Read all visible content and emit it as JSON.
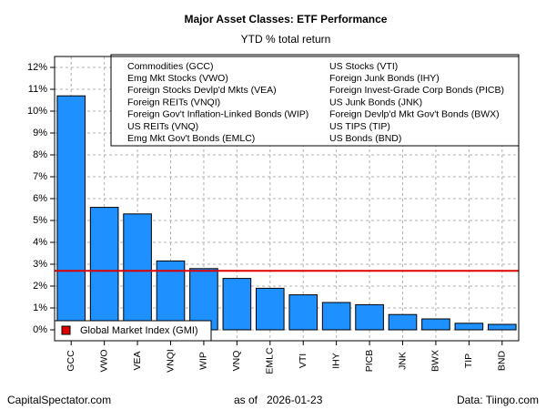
{
  "chart_data": {
    "type": "bar",
    "title": "Major Asset Classes: ETF Performance",
    "subtitle": "YTD % total return",
    "categories": [
      "GCC",
      "VWO",
      "VEA",
      "VNQI",
      "WIP",
      "VNQ",
      "EMLC",
      "VTI",
      "IHY",
      "PICB",
      "JNK",
      "BWX",
      "TIP",
      "BND"
    ],
    "values": [
      10.7,
      5.6,
      5.3,
      3.15,
      2.8,
      2.35,
      1.9,
      1.6,
      1.25,
      1.15,
      0.7,
      0.5,
      0.3,
      0.25
    ],
    "color": "#1e90ff",
    "ylim": [
      -0.5,
      12.5
    ],
    "yticks": [
      {
        "value": 0,
        "label": "0%"
      },
      {
        "value": 1,
        "label": "1%"
      },
      {
        "value": 2,
        "label": "2%"
      },
      {
        "value": 3,
        "label": "3%"
      },
      {
        "value": 4,
        "label": "4%"
      },
      {
        "value": 5,
        "label": "5%"
      },
      {
        "value": 6,
        "label": "6%"
      },
      {
        "value": 7,
        "label": "7%"
      },
      {
        "value": 8,
        "label": "8%"
      },
      {
        "value": 9,
        "label": "9%"
      },
      {
        "value": 10,
        "label": "10%"
      },
      {
        "value": 11,
        "label": "11%"
      },
      {
        "value": 12,
        "label": "12%"
      }
    ],
    "grid": true,
    "legend_entries": [
      "Commodities (GCC)",
      "Emg Mkt Stocks (VWO)",
      "Foreign Stocks Devlp'd Mkts (VEA)",
      "Foreign REITs (VNQI)",
      "Foreign Gov't Inflation-Linked Bonds (WIP)",
      "US REITs (VNQ)",
      "Emg Mkt Gov't Bonds (EMLC)",
      "US Stocks (VTI)",
      "Foreign Junk Bonds (IHY)",
      "Foreign Invest-Grade Corp Bonds (PICB)",
      "US Junk Bonds (JNK)",
      "Foreign Devlp'd Mkt Gov't Bonds (BWX)",
      "US TIPS (TIP)",
      "US Bonds (BND)"
    ],
    "reference_line": {
      "name": "Global Market Index (GMI)",
      "value": 2.7,
      "color": "#dd0000"
    },
    "footer_left": "CapitalSpectator.com",
    "footer_as_of": "as of",
    "footer_date": "2026-01-23",
    "footer_right": "Data: Tiingo.com"
  }
}
